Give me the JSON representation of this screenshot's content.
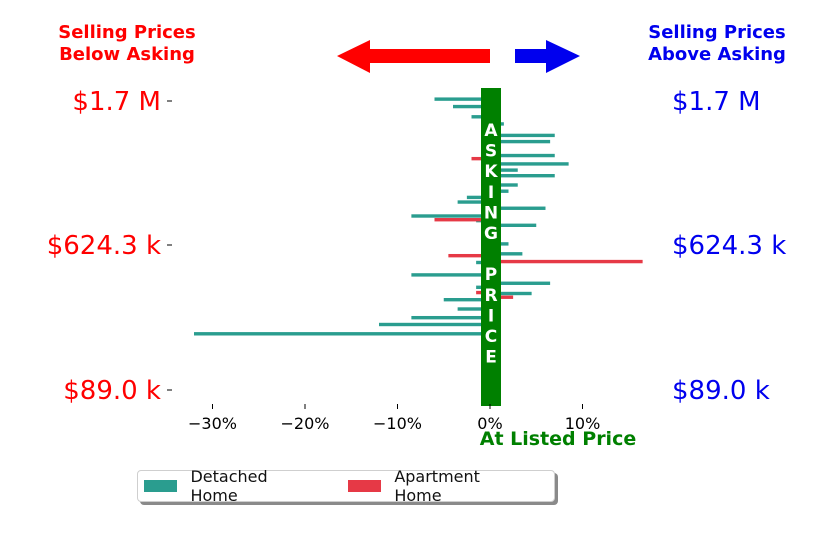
{
  "header": {
    "left_title_line1": "Selling Prices",
    "left_title_line2": "Below Asking",
    "right_title_line1": "Selling Prices",
    "right_title_line2": "Above Asking"
  },
  "colors": {
    "below": "#ff0000",
    "above": "#0000ee",
    "asking": "#008000",
    "detached": "#2a9d8f",
    "apartment": "#e63946"
  },
  "legend": {
    "detached_label": "Detached Home",
    "apartment_label": "Apartment Home"
  },
  "chart_data": {
    "type": "bar",
    "orientation": "horizontal",
    "center_label": "ASKING PRICE",
    "xlabel": "At Listed Price",
    "xlim": [
      -34,
      17
    ],
    "x_ticks": [
      -30,
      -20,
      -10,
      0,
      10
    ],
    "x_tick_labels": [
      "−30%",
      "−20%",
      "−10%",
      "0%",
      "10%"
    ],
    "price_ticks_left": [
      "$1.7 M",
      "$624.3 k",
      "$89.0 k"
    ],
    "price_ticks_right": [
      "$1.7 M",
      "$624.3 k",
      "$89.0 k"
    ],
    "y_range": [
      "$89.0 k",
      "$1.7 M"
    ],
    "series": [
      {
        "name": "Detached Home",
        "color": "#2a9d8f",
        "values": [
          -6,
          -4,
          -2,
          1.5,
          1,
          7,
          6.5,
          1,
          7,
          8.5,
          3,
          7,
          3,
          2,
          -2.5,
          -3.5,
          6,
          -8.5,
          -1.5,
          5,
          1,
          2,
          3.5,
          -1.5,
          1,
          -8.5,
          6.5,
          -1.5,
          4.5,
          -5,
          -3.5,
          -8.5,
          -12,
          -32
        ],
        "price_positions": [
          0.977,
          0.953,
          0.92,
          0.897,
          0.88,
          0.86,
          0.84,
          0.82,
          0.795,
          0.768,
          0.748,
          0.73,
          0.7,
          0.68,
          0.66,
          0.645,
          0.625,
          0.6,
          0.585,
          0.57,
          0.533,
          0.51,
          0.478,
          0.45,
          0.428,
          0.41,
          0.383,
          0.37,
          0.35,
          0.33,
          0.3,
          0.272,
          0.25,
          0.22
        ]
      },
      {
        "name": "Apartment Home",
        "color": "#e63946",
        "values": [
          -2,
          -6,
          -4.5,
          16.5,
          -1.5,
          2.5
        ],
        "price_positions": [
          0.785,
          0.588,
          0.472,
          0.453,
          0.353,
          0.338
        ]
      }
    ]
  }
}
